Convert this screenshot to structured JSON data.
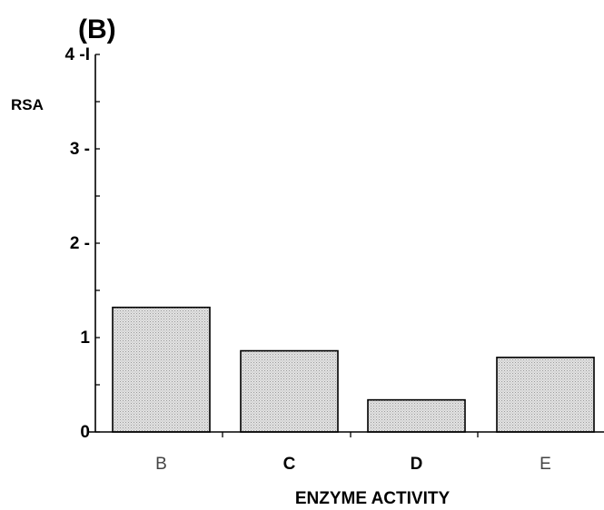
{
  "chart_data": {
    "type": "bar",
    "panel_label": "(B)",
    "ylabel": "RSA",
    "xlabel": "ENZYME ACTIVITY",
    "categories": [
      "B",
      "C",
      "D",
      "E"
    ],
    "values": [
      1.32,
      0.86,
      0.34,
      0.79
    ],
    "ylim": [
      0,
      4
    ],
    "yticks": [
      {
        "value": 0,
        "label": "0"
      },
      {
        "value": 1,
        "label": "1"
      },
      {
        "value": 2,
        "label": "2 -"
      },
      {
        "value": 3,
        "label": "3 -"
      },
      {
        "value": 4,
        "label": "4 -I"
      }
    ],
    "grid": false,
    "bar_fill": "#d4d4d4",
    "bar_stroke": "#000000"
  }
}
